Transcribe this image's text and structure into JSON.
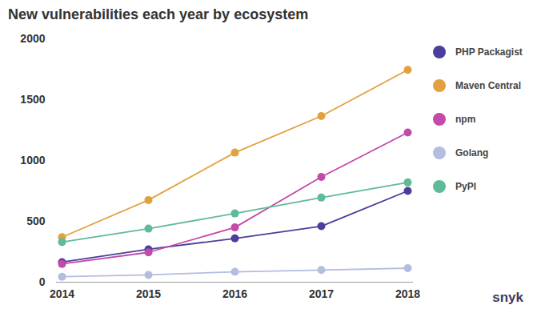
{
  "chart_data": {
    "type": "line",
    "title": "New vulnerabilities each year by ecosystem",
    "categories": [
      "2014",
      "2015",
      "2016",
      "2017",
      "2018"
    ],
    "series": [
      {
        "name": "PHP Packagist",
        "color": "#4a3f9b",
        "values": [
          165,
          270,
          360,
          460,
          750
        ]
      },
      {
        "name": "Maven Central",
        "color": "#e3a03e",
        "values": [
          370,
          675,
          1065,
          1365,
          1745
        ]
      },
      {
        "name": "npm",
        "color": "#c24aa8",
        "values": [
          150,
          245,
          450,
          865,
          1230
        ]
      },
      {
        "name": "Golang",
        "color": "#b3bde0",
        "values": [
          45,
          60,
          85,
          100,
          115
        ]
      },
      {
        "name": "PyPI",
        "color": "#5fbb97",
        "values": [
          330,
          440,
          565,
          695,
          820
        ]
      }
    ],
    "ylim": [
      0,
      2000
    ],
    "yticks": [
      0,
      500,
      1000,
      1500,
      2000
    ],
    "grid": false,
    "legend": "right",
    "marker": "circle",
    "source": "snyk"
  }
}
